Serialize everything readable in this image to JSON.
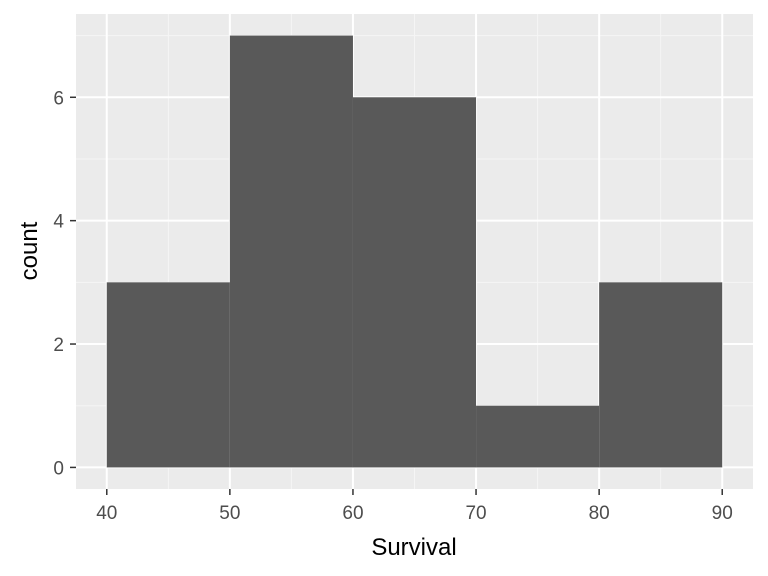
{
  "chart_data": {
    "type": "histogram",
    "xlabel": "Survival",
    "ylabel": "count",
    "xlim": [
      37.5,
      92.5
    ],
    "ylim": [
      -0.35,
      7.35
    ],
    "x_ticks": [
      40,
      50,
      60,
      70,
      80,
      90
    ],
    "x_minor": [
      45,
      55,
      65,
      75,
      85
    ],
    "y_ticks": [
      0,
      2,
      4,
      6
    ],
    "y_minor": [
      1,
      3,
      5,
      7
    ],
    "bins": [
      {
        "x0": 40,
        "x1": 50,
        "count": 3
      },
      {
        "x0": 50,
        "x1": 60,
        "count": 7
      },
      {
        "x0": 60,
        "x1": 70,
        "count": 6
      },
      {
        "x0": 70,
        "x1": 80,
        "count": 1
      },
      {
        "x0": 80,
        "x1": 90,
        "count": 3
      }
    ],
    "grid": true,
    "colors": {
      "panel": "#ebebeb",
      "grid_major": "#ffffff",
      "grid_minor": "#f5f5f5",
      "bar": "#595959",
      "tick": "#333333"
    }
  }
}
